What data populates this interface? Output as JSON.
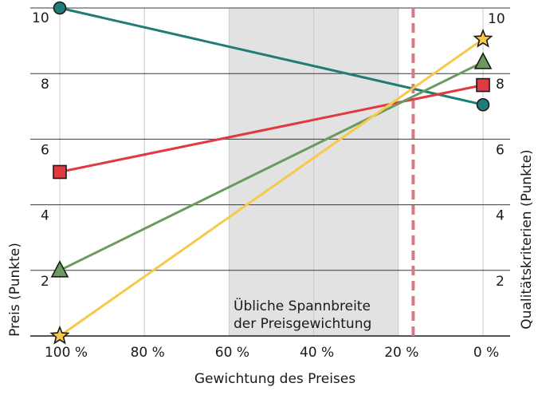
{
  "chart_data": {
    "type": "line",
    "xlabel": "Gewichtung des Preises",
    "ylabel_left": "Preis (Punkte)",
    "ylabel_right": "Qualitätskriterien (Punkte)",
    "x_tick_values": [
      100,
      80,
      60,
      40,
      20,
      0
    ],
    "x_tick_labels": [
      "100 %",
      "80 %",
      "60 %",
      "40 %",
      "20 %",
      "0 %"
    ],
    "xlim": [
      100,
      0
    ],
    "ylim": [
      0,
      10
    ],
    "y_ticks_left": [
      "10",
      "8",
      "6",
      "4",
      "2"
    ],
    "y_ticks_right": [
      "10",
      "8",
      "6",
      "4",
      "2"
    ],
    "y_tick_values": [
      10,
      8,
      6,
      4,
      2
    ],
    "grid": true,
    "shaded_band": {
      "from": 60,
      "to": 20,
      "color": "#e2e2e2",
      "label_line1": "Übliche Spannbreite",
      "label_line2": "der Preisgewichtung"
    },
    "reference_line": {
      "x": 16.5,
      "color": "#d67b86",
      "style": "dashed"
    },
    "series": [
      {
        "marker": "circle",
        "color": "#1f7d77",
        "x": [
          100,
          0
        ],
        "y": [
          10,
          7.05
        ]
      },
      {
        "marker": "square",
        "color": "#e03a3e",
        "x": [
          100,
          0
        ],
        "y": [
          5.0,
          7.65
        ]
      },
      {
        "marker": "triangle",
        "color": "#6a9a5e",
        "x": [
          100,
          0
        ],
        "y": [
          2.0,
          8.35
        ]
      },
      {
        "marker": "star",
        "color": "#f7c84a",
        "x": [
          100,
          0
        ],
        "y": [
          0,
          9.05
        ]
      }
    ]
  }
}
